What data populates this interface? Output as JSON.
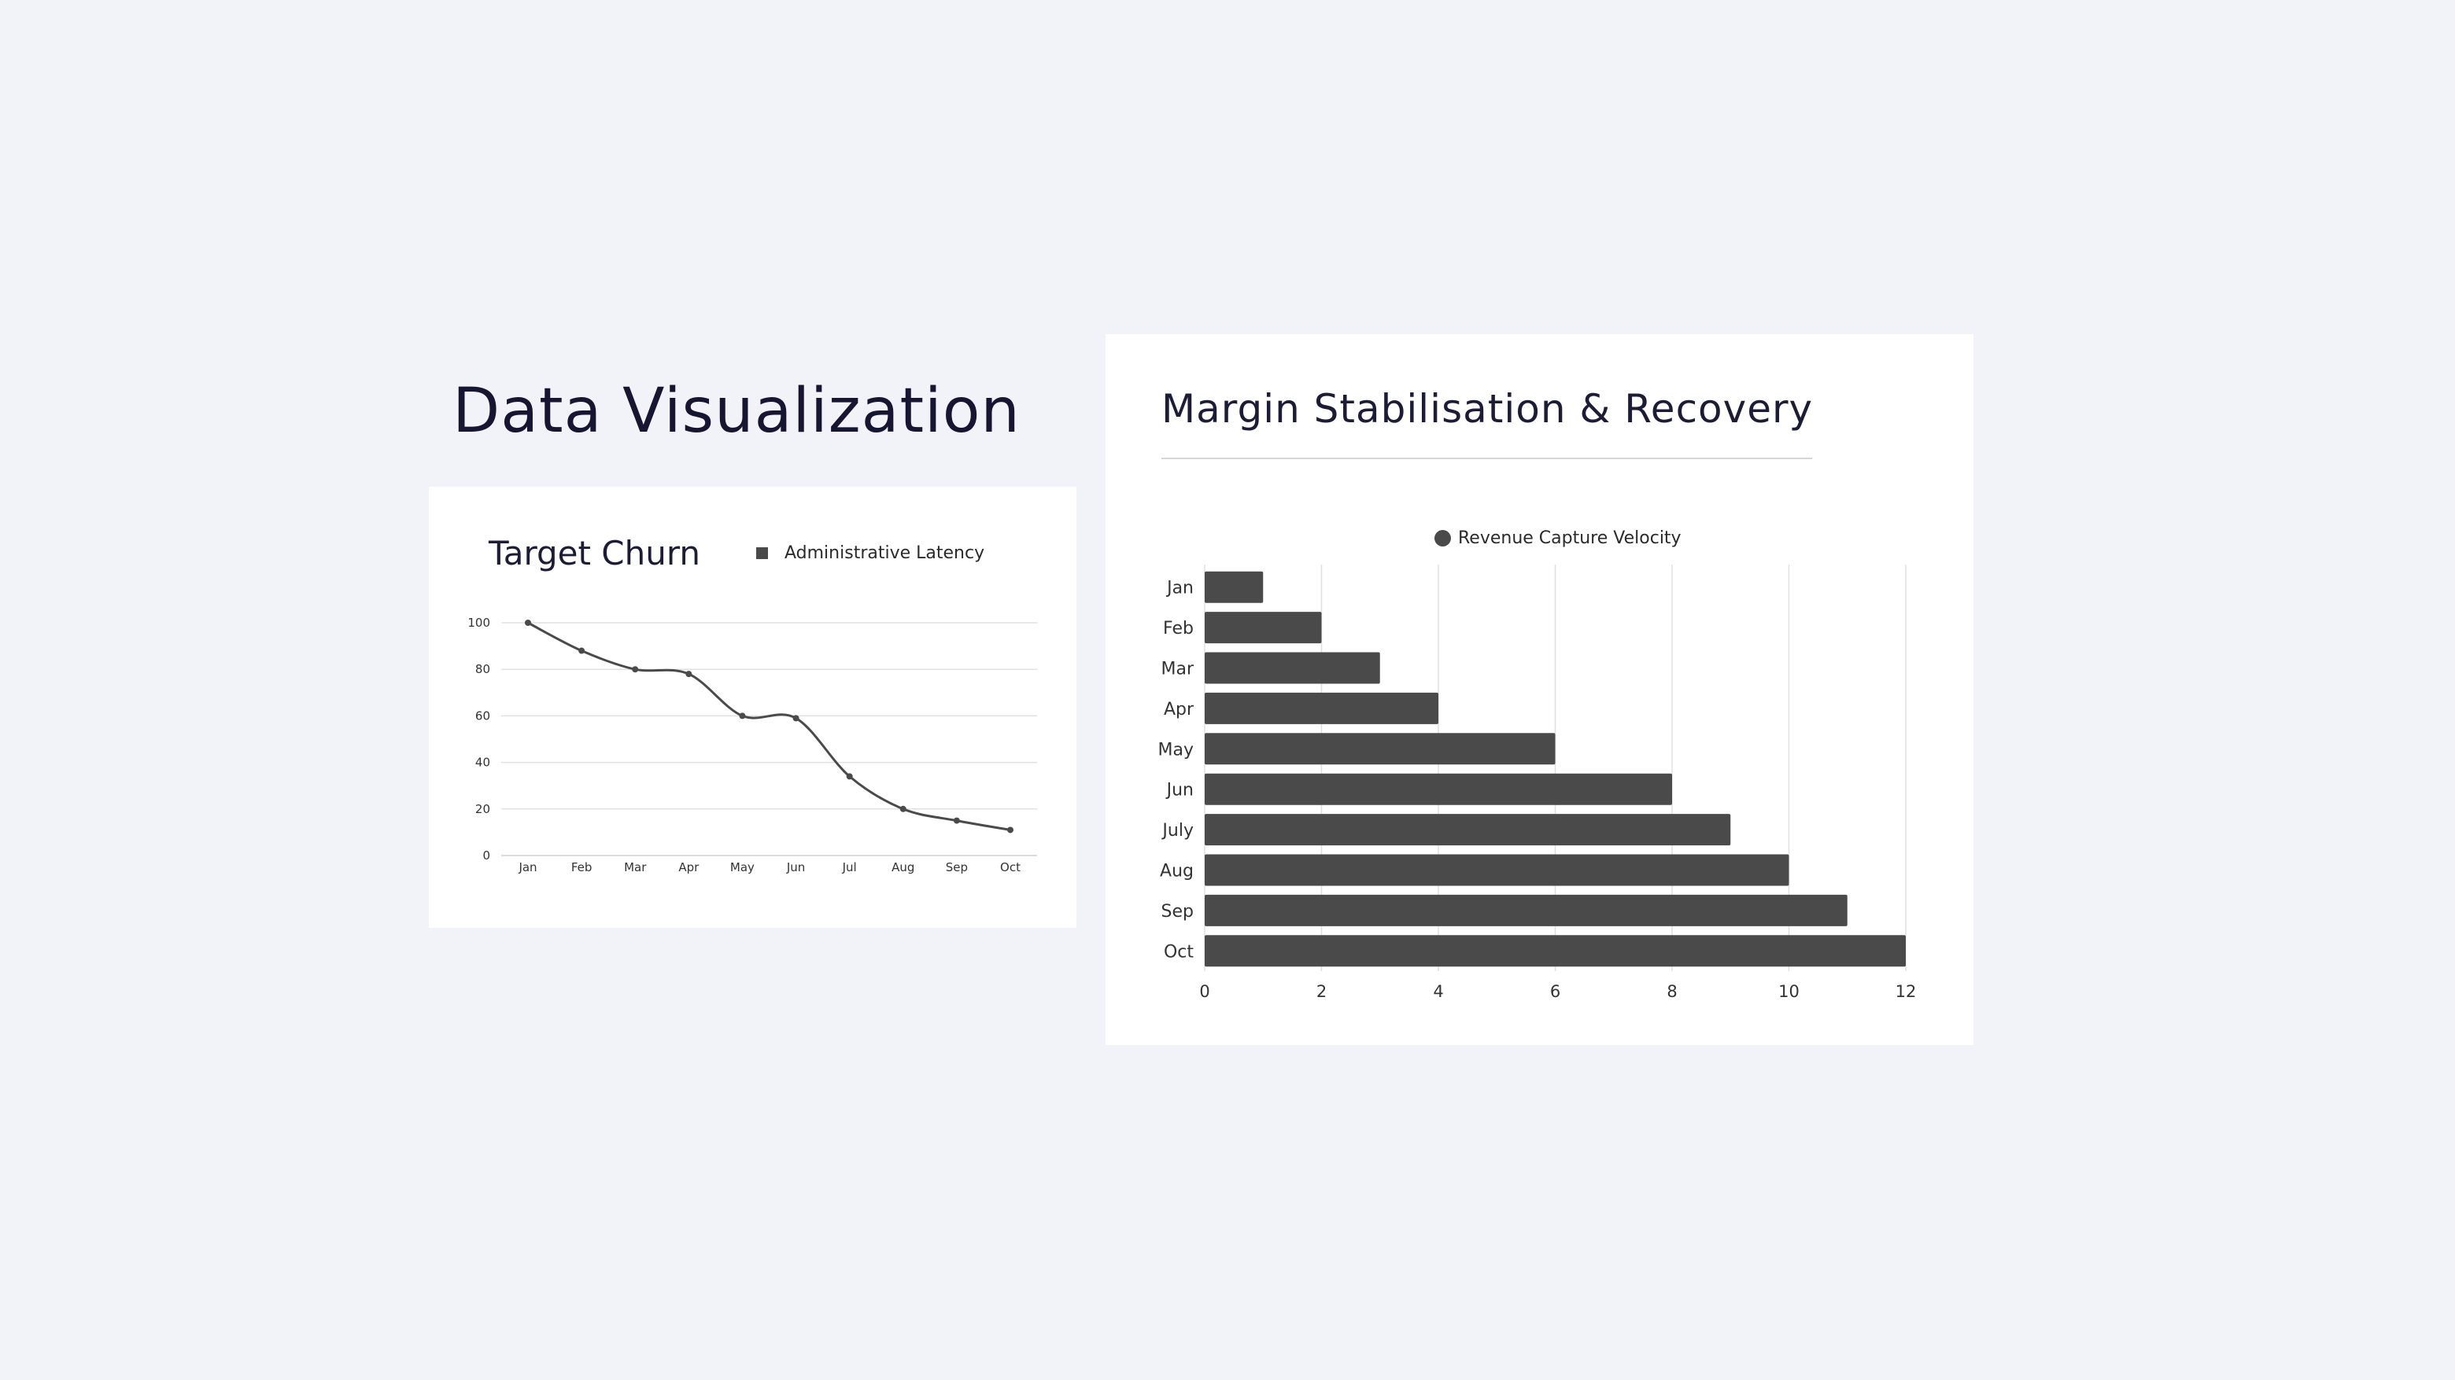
{
  "page": {
    "title": "Data Visualization"
  },
  "colors": {
    "background": "#f2f3f8",
    "card": "#ffffff",
    "series": "#4a4a4a",
    "grid": "#e0e0e0"
  },
  "chart_data": [
    {
      "type": "line",
      "title": "Target Churn",
      "categories": [
        "Jan",
        "Feb",
        "Mar",
        "Apr",
        "May",
        "Jun",
        "Jul",
        "Aug",
        "Sep",
        "Oct"
      ],
      "series": [
        {
          "name": "Administrative Latency",
          "values": [
            100,
            88,
            80,
            78,
            60,
            59,
            34,
            20,
            15,
            11
          ]
        }
      ],
      "ylim": [
        0,
        100
      ],
      "yticks": [
        0,
        20,
        40,
        60,
        80,
        100
      ],
      "xlabel": "",
      "ylabel": "",
      "grid": true,
      "legend": "top-right",
      "smooth": true
    },
    {
      "type": "bar",
      "orientation": "horizontal",
      "title": "Margin Stabilisation & Recovery",
      "categories": [
        "Jan",
        "Feb",
        "Mar",
        "Apr",
        "May",
        "Jun",
        "July",
        "Aug",
        "Sep",
        "Oct"
      ],
      "series": [
        {
          "name": "Revenue Capture Velocity",
          "values": [
            1,
            2,
            3,
            4,
            6,
            8,
            9,
            10,
            11,
            12
          ]
        }
      ],
      "xlim": [
        0,
        12
      ],
      "xticks": [
        0,
        2,
        4,
        6,
        8,
        10,
        12
      ],
      "xlabel": "",
      "ylabel": "",
      "grid": true,
      "legend": "top"
    }
  ]
}
